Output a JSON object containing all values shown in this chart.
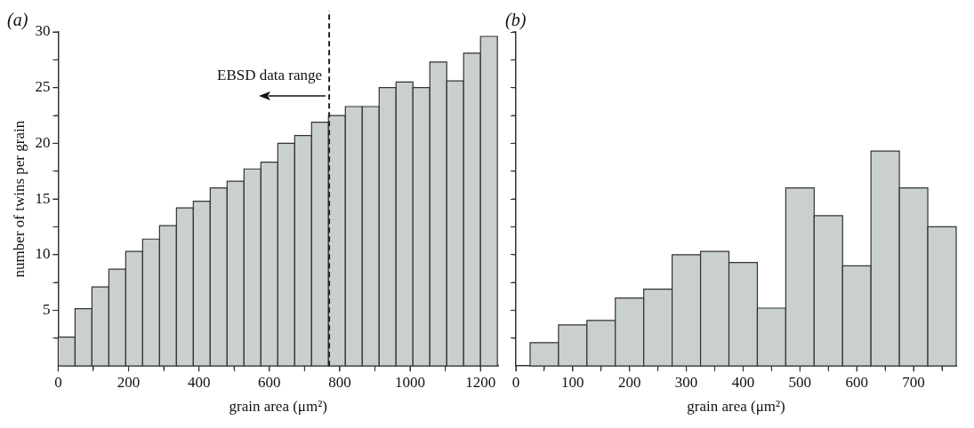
{
  "chart_data": [
    {
      "type": "histogram",
      "title": "(a)",
      "xlabel": "grain area (μm²)",
      "ylabel": "number of twins per grain",
      "color": "#cad0d0",
      "bins": [
        0,
        48,
        96,
        144,
        192,
        240,
        288,
        336,
        384,
        432,
        480,
        528,
        576,
        624,
        672,
        720,
        768,
        816,
        864,
        912,
        960,
        1008,
        1056,
        1104,
        1152,
        1200,
        1248
      ],
      "values": [
        2.6,
        5.15,
        7.1,
        8.7,
        10.3,
        11.4,
        12.6,
        14.2,
        14.8,
        16.0,
        16.6,
        17.7,
        18.3,
        20.0,
        20.7,
        21.9,
        22.5,
        23.3,
        23.3,
        25.0,
        25.5,
        25.0,
        27.3,
        25.6,
        28.1,
        29.6
      ],
      "xlim": [
        0,
        1250
      ],
      "ylim": [
        0,
        30
      ],
      "xticks": [
        0,
        {
          "value": 100,
          "label": null
        },
        200,
        {
          "value": 300,
          "label": null
        },
        400,
        {
          "value": 500,
          "label": null
        },
        600,
        {
          "value": 700,
          "label": null
        },
        800,
        {
          "value": 900,
          "label": null
        },
        1000,
        {
          "value": 1100,
          "label": null
        },
        1200
      ],
      "yticks": [
        {
          "value": 2.5,
          "label": null
        },
        5,
        {
          "value": 7.5,
          "label": null
        },
        10,
        {
          "value": 12.5,
          "label": null
        },
        15,
        {
          "value": 17.5,
          "label": null
        },
        20,
        {
          "value": 22.5,
          "label": null
        },
        25,
        {
          "value": 27.5,
          "label": null
        },
        30
      ],
      "ref_lines": [
        {
          "axis": "x",
          "value": 770,
          "label": "EBSD data range",
          "line_style": "dashed",
          "color": "#222222"
        }
      ],
      "grid": false,
      "legend": false
    },
    {
      "type": "histogram",
      "title": "(b)",
      "xlabel": "grain area (μm²)",
      "color": "#cad0d0",
      "bins": [
        25,
        75,
        125,
        175,
        225,
        275,
        325,
        375,
        425,
        475,
        525,
        575,
        625,
        675,
        725,
        775
      ],
      "values": [
        2.1,
        3.7,
        4.1,
        6.1,
        6.9,
        10.0,
        10.3,
        9.3,
        5.2,
        16.0,
        13.5,
        9.0,
        19.3,
        16.0,
        12.5
      ],
      "xlim": [
        0,
        775
      ],
      "ylim": [
        0,
        30
      ],
      "xticks": [
        0,
        {
          "value": 50,
          "label": null
        },
        100,
        {
          "value": 150,
          "label": null
        },
        200,
        {
          "value": 250,
          "label": null
        },
        300,
        {
          "value": 350,
          "label": null
        },
        400,
        {
          "value": 450,
          "label": null
        },
        500,
        {
          "value": 550,
          "label": null
        },
        600,
        {
          "value": 650,
          "label": null
        },
        700,
        {
          "value": 750,
          "label": null
        }
      ],
      "yticks": [
        {
          "value": 2.5,
          "label": null
        },
        {
          "value": 5,
          "label": null
        },
        {
          "value": 7.5,
          "label": null
        },
        {
          "value": 10,
          "label": null
        },
        {
          "value": 12.5,
          "label": null
        },
        {
          "value": 15,
          "label": null
        },
        {
          "value": 17.5,
          "label": null
        },
        {
          "value": 20,
          "label": null
        },
        {
          "value": 22.5,
          "label": null
        },
        {
          "value": 25,
          "label": null
        },
        {
          "value": 27.5,
          "label": null
        },
        {
          "value": 30,
          "label": null
        }
      ],
      "tick_labels": "x",
      "grid": false,
      "legend": false
    }
  ]
}
